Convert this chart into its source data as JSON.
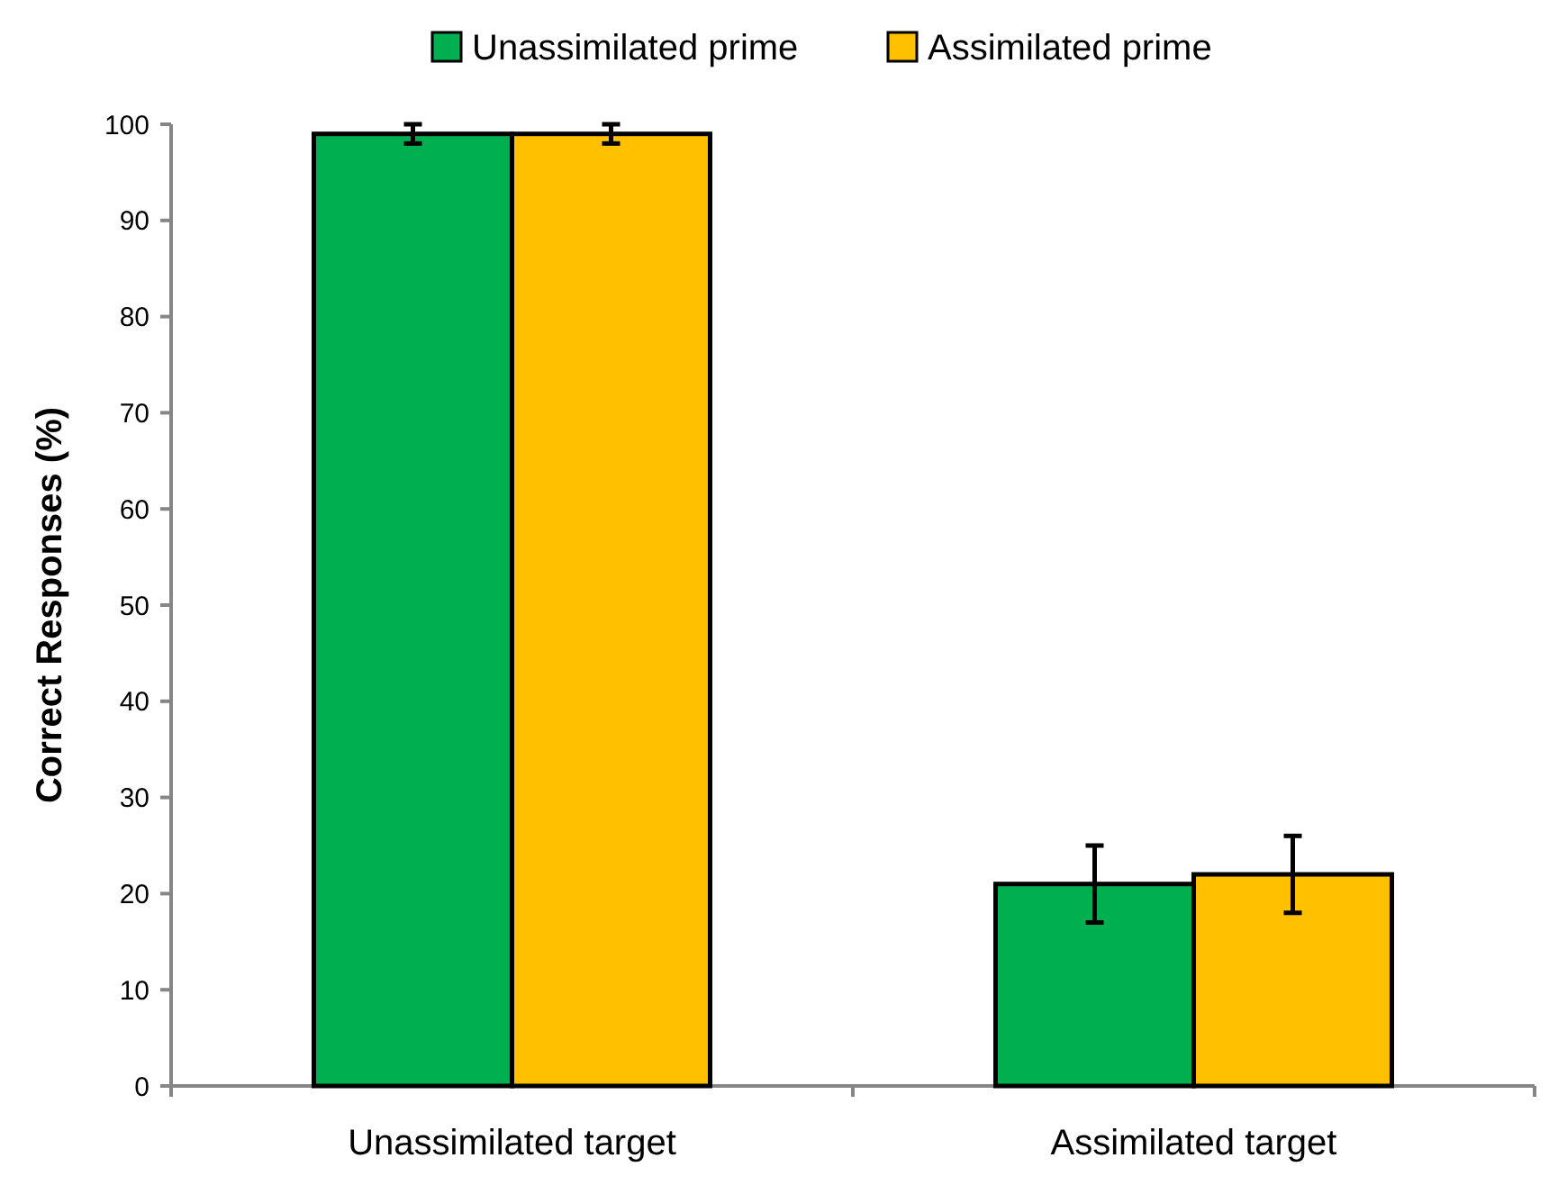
{
  "chart_data": {
    "type": "bar",
    "ylabel": "Correct Responses (%)",
    "categories": [
      "Unassimilated target",
      "Assimilated target"
    ],
    "series": [
      {
        "name": "Unassimilated prime",
        "color": "#00b050",
        "values": [
          99,
          21
        ],
        "errors": [
          1,
          4
        ]
      },
      {
        "name": "Assimilated prime",
        "color": "#ffc000",
        "values": [
          99,
          22
        ],
        "errors": [
          1,
          4
        ]
      }
    ],
    "ylim": [
      0,
      100
    ],
    "yticks": [
      0,
      10,
      20,
      30,
      40,
      50,
      60,
      70,
      80,
      90,
      100
    ],
    "grid": false,
    "legend": "top"
  }
}
